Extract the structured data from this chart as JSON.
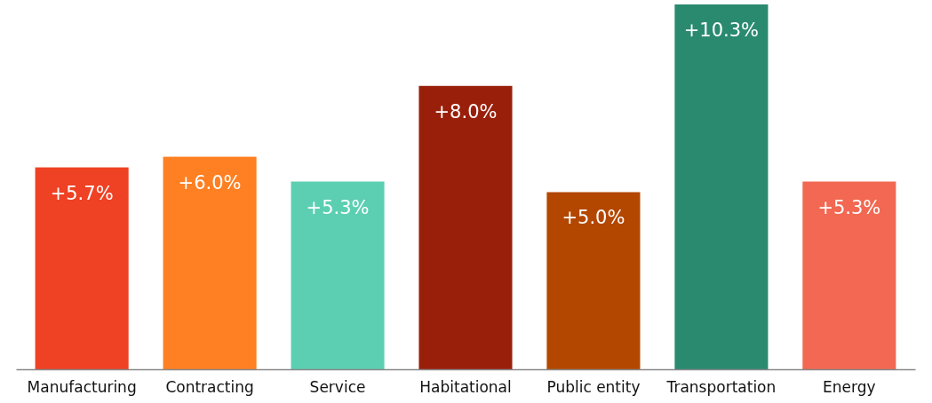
{
  "chart_data": {
    "type": "bar",
    "categories": [
      "Manufacturing",
      "Contracting",
      "Service",
      "Habitational",
      "Public entity",
      "Transportation",
      "Energy"
    ],
    "values": [
      5.7,
      6.0,
      5.3,
      8.0,
      5.0,
      10.3,
      5.3
    ],
    "colors": [
      "#ef4123",
      "#fe8022",
      "#5ccfb2",
      "#9a1f0b",
      "#b34700",
      "#2a8a70",
      "#f26852"
    ],
    "value_labels": [
      "+5.7%",
      "+6.0%",
      "+5.3%",
      "+8.0%",
      "+5.0%",
      "+10.3%",
      "+5.3%"
    ],
    "tick_labels": "x"
  }
}
